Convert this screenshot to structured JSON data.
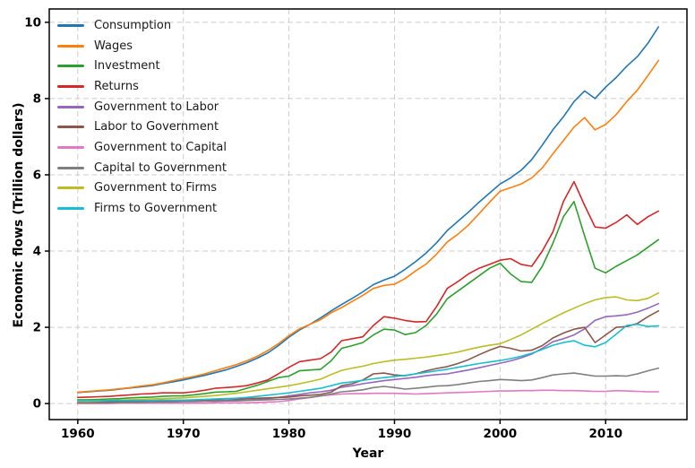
{
  "figure": {
    "background": "#ffffff",
    "grid_color": "#cccccc",
    "spine_color": "#000000"
  },
  "chart_data": {
    "type": "line",
    "title": "",
    "xlabel": "Year",
    "ylabel": "Economic flows (Trillion dollars)",
    "grid": true,
    "grid_style": "dashed",
    "legend_position": "upper left",
    "xlim": [
      1957.3,
      2017.7
    ],
    "ylim": [
      -0.42,
      10.35
    ],
    "x_ticks": [
      1960,
      1970,
      1980,
      1990,
      2000,
      2010
    ],
    "y_ticks": [
      0,
      2,
      4,
      6,
      8,
      10
    ],
    "years": [
      1960,
      1961,
      1962,
      1963,
      1964,
      1965,
      1966,
      1967,
      1968,
      1969,
      1970,
      1971,
      1972,
      1973,
      1974,
      1975,
      1976,
      1977,
      1978,
      1979,
      1980,
      1981,
      1982,
      1983,
      1984,
      1985,
      1986,
      1987,
      1988,
      1989,
      1990,
      1991,
      1992,
      1993,
      1994,
      1995,
      1996,
      1997,
      1998,
      1999,
      2000,
      2001,
      2002,
      2003,
      2004,
      2005,
      2006,
      2007,
      2008,
      2009,
      2010,
      2011,
      2012,
      2013,
      2014,
      2015
    ],
    "series": [
      {
        "name": "Consumption",
        "color": "#1f77b4",
        "values": [
          0.29,
          0.31,
          0.33,
          0.35,
          0.38,
          0.41,
          0.44,
          0.47,
          0.52,
          0.57,
          0.62,
          0.68,
          0.74,
          0.81,
          0.88,
          0.97,
          1.07,
          1.19,
          1.33,
          1.52,
          1.74,
          1.93,
          2.08,
          2.25,
          2.43,
          2.6,
          2.76,
          2.93,
          3.12,
          3.24,
          3.34,
          3.52,
          3.72,
          3.95,
          4.22,
          4.54,
          4.78,
          5.02,
          5.28,
          5.52,
          5.76,
          5.92,
          6.12,
          6.4,
          6.78,
          7.18,
          7.52,
          7.92,
          8.2,
          8.0,
          8.3,
          8.55,
          8.85,
          9.1,
          9.45,
          9.88
        ]
      },
      {
        "name": "Wages",
        "color": "#ff7f0e",
        "values": [
          0.3,
          0.32,
          0.34,
          0.36,
          0.39,
          0.42,
          0.46,
          0.49,
          0.54,
          0.6,
          0.66,
          0.71,
          0.78,
          0.86,
          0.94,
          1.02,
          1.12,
          1.24,
          1.39,
          1.57,
          1.78,
          1.96,
          2.08,
          2.2,
          2.38,
          2.52,
          2.68,
          2.84,
          3.02,
          3.1,
          3.13,
          3.28,
          3.48,
          3.66,
          3.92,
          4.24,
          4.44,
          4.68,
          4.98,
          5.28,
          5.57,
          5.66,
          5.76,
          5.92,
          6.18,
          6.55,
          6.9,
          7.25,
          7.5,
          7.18,
          7.32,
          7.58,
          7.92,
          8.22,
          8.6,
          9.0
        ]
      },
      {
        "name": "Investment",
        "color": "#2ca02c",
        "values": [
          0.1,
          0.1,
          0.11,
          0.12,
          0.13,
          0.15,
          0.16,
          0.17,
          0.19,
          0.2,
          0.2,
          0.23,
          0.26,
          0.3,
          0.31,
          0.32,
          0.4,
          0.48,
          0.58,
          0.68,
          0.72,
          0.86,
          0.88,
          0.9,
          1.12,
          1.45,
          1.52,
          1.6,
          1.8,
          1.95,
          1.93,
          1.81,
          1.86,
          2.05,
          2.35,
          2.75,
          2.95,
          3.15,
          3.35,
          3.55,
          3.68,
          3.4,
          3.2,
          3.18,
          3.6,
          4.2,
          4.9,
          5.3,
          4.4,
          3.55,
          3.43,
          3.6,
          3.75,
          3.9,
          4.1,
          4.3
        ]
      },
      {
        "name": "Returns",
        "color": "#d62728",
        "values": [
          0.16,
          0.17,
          0.18,
          0.19,
          0.21,
          0.23,
          0.25,
          0.26,
          0.28,
          0.28,
          0.28,
          0.31,
          0.35,
          0.4,
          0.42,
          0.44,
          0.47,
          0.54,
          0.62,
          0.78,
          0.95,
          1.1,
          1.14,
          1.18,
          1.35,
          1.65,
          1.7,
          1.75,
          2.05,
          2.28,
          2.24,
          2.18,
          2.14,
          2.15,
          2.55,
          3.02,
          3.2,
          3.4,
          3.55,
          3.65,
          3.76,
          3.8,
          3.65,
          3.6,
          4.0,
          4.5,
          5.3,
          5.82,
          5.2,
          4.63,
          4.6,
          4.75,
          4.95,
          4.7,
          4.9,
          5.05
        ]
      },
      {
        "name": "Government to Labor",
        "color": "#9467bd",
        "values": [
          0.03,
          0.03,
          0.03,
          0.04,
          0.04,
          0.04,
          0.05,
          0.05,
          0.06,
          0.06,
          0.06,
          0.07,
          0.08,
          0.08,
          0.08,
          0.09,
          0.09,
          0.11,
          0.13,
          0.16,
          0.2,
          0.24,
          0.28,
          0.31,
          0.35,
          0.43,
          0.47,
          0.52,
          0.56,
          0.6,
          0.63,
          0.66,
          0.69,
          0.73,
          0.76,
          0.78,
          0.83,
          0.88,
          0.94,
          1.0,
          1.06,
          1.12,
          1.2,
          1.3,
          1.45,
          1.62,
          1.7,
          1.8,
          1.96,
          2.18,
          2.28,
          2.3,
          2.33,
          2.4,
          2.5,
          2.62
        ]
      },
      {
        "name": "Labor to Government",
        "color": "#8c564b",
        "values": [
          0.04,
          0.04,
          0.05,
          0.05,
          0.05,
          0.06,
          0.06,
          0.07,
          0.08,
          0.09,
          0.09,
          0.09,
          0.1,
          0.11,
          0.12,
          0.12,
          0.13,
          0.14,
          0.15,
          0.16,
          0.17,
          0.2,
          0.22,
          0.24,
          0.3,
          0.47,
          0.52,
          0.62,
          0.78,
          0.8,
          0.75,
          0.73,
          0.78,
          0.86,
          0.92,
          0.97,
          1.05,
          1.15,
          1.28,
          1.4,
          1.5,
          1.45,
          1.38,
          1.4,
          1.52,
          1.72,
          1.85,
          1.95,
          2.0,
          1.6,
          1.8,
          2.0,
          2.02,
          2.1,
          2.28,
          2.43
        ]
      },
      {
        "name": "Government to Capital",
        "color": "#e377c2",
        "values": [
          0.0,
          0.0,
          0.0,
          0.0,
          0.01,
          0.01,
          0.01,
          0.01,
          0.01,
          0.01,
          0.01,
          0.01,
          0.01,
          0.02,
          0.02,
          0.02,
          0.02,
          0.03,
          0.04,
          0.05,
          0.08,
          0.12,
          0.16,
          0.2,
          0.23,
          0.25,
          0.26,
          0.26,
          0.27,
          0.27,
          0.27,
          0.26,
          0.25,
          0.26,
          0.27,
          0.28,
          0.29,
          0.3,
          0.31,
          0.32,
          0.33,
          0.33,
          0.34,
          0.34,
          0.35,
          0.35,
          0.34,
          0.34,
          0.33,
          0.32,
          0.32,
          0.34,
          0.33,
          0.32,
          0.31,
          0.31
        ]
      },
      {
        "name": "Capital to Government",
        "color": "#7f7f7f",
        "values": [
          0.02,
          0.02,
          0.02,
          0.02,
          0.03,
          0.03,
          0.03,
          0.04,
          0.04,
          0.04,
          0.05,
          0.05,
          0.06,
          0.06,
          0.07,
          0.07,
          0.08,
          0.09,
          0.1,
          0.11,
          0.12,
          0.14,
          0.16,
          0.2,
          0.25,
          0.31,
          0.33,
          0.36,
          0.42,
          0.45,
          0.42,
          0.38,
          0.4,
          0.43,
          0.46,
          0.47,
          0.5,
          0.54,
          0.58,
          0.6,
          0.63,
          0.62,
          0.6,
          0.62,
          0.68,
          0.75,
          0.78,
          0.8,
          0.76,
          0.72,
          0.72,
          0.73,
          0.72,
          0.78,
          0.86,
          0.93
        ]
      },
      {
        "name": "Government to Firms",
        "color": "#bcbd22",
        "values": [
          0.06,
          0.06,
          0.07,
          0.08,
          0.09,
          0.1,
          0.11,
          0.12,
          0.13,
          0.14,
          0.15,
          0.17,
          0.19,
          0.21,
          0.24,
          0.27,
          0.31,
          0.35,
          0.39,
          0.43,
          0.47,
          0.52,
          0.58,
          0.64,
          0.76,
          0.87,
          0.93,
          0.98,
          1.05,
          1.1,
          1.14,
          1.16,
          1.19,
          1.22,
          1.26,
          1.3,
          1.35,
          1.42,
          1.48,
          1.53,
          1.57,
          1.68,
          1.8,
          1.95,
          2.1,
          2.24,
          2.38,
          2.5,
          2.62,
          2.72,
          2.78,
          2.8,
          2.72,
          2.7,
          2.76,
          2.9
        ]
      },
      {
        "name": "Firms to Government",
        "color": "#17becf",
        "values": [
          0.08,
          0.08,
          0.08,
          0.08,
          0.08,
          0.08,
          0.08,
          0.08,
          0.09,
          0.09,
          0.09,
          0.1,
          0.11,
          0.12,
          0.13,
          0.14,
          0.16,
          0.19,
          0.22,
          0.25,
          0.28,
          0.32,
          0.36,
          0.4,
          0.47,
          0.54,
          0.57,
          0.61,
          0.65,
          0.68,
          0.71,
          0.74,
          0.78,
          0.82,
          0.86,
          0.9,
          0.95,
          1.0,
          1.05,
          1.09,
          1.13,
          1.18,
          1.24,
          1.32,
          1.42,
          1.53,
          1.6,
          1.65,
          1.53,
          1.49,
          1.6,
          1.82,
          2.05,
          2.08,
          2.02,
          2.04
        ]
      }
    ]
  }
}
